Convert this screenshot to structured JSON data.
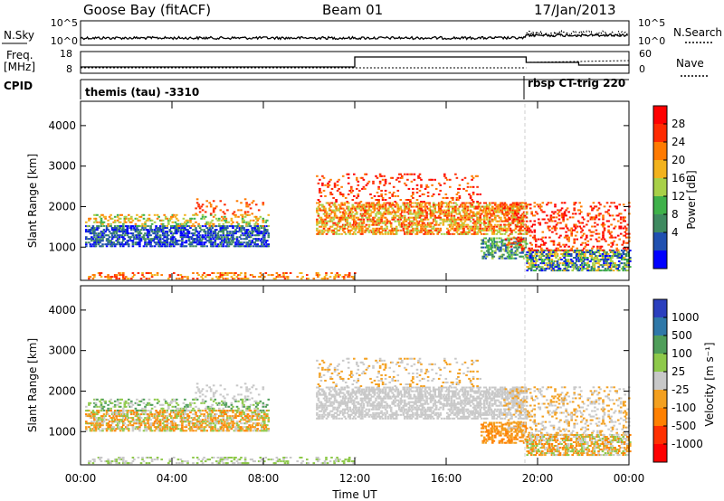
{
  "header": {
    "station": "Goose Bay (fitACF)",
    "beam": "Beam 01",
    "date": "17/Jan/2013"
  },
  "top_panels": {
    "nsky_label": "N.Sky",
    "nsky_ticks": [
      "10^5",
      "10^0"
    ],
    "nsearch_label": "N.Search",
    "nsearch_ticks": [
      "10^5",
      "10^0"
    ],
    "freq_label_1": "Freq.",
    "freq_label_2": "[MHz]",
    "freq_ticks": [
      "18",
      "8"
    ],
    "nave_label": "Nave",
    "nave_ticks": [
      "60",
      "0"
    ],
    "cpid_label": "CPID",
    "cpid_1": "themis (tau) -3310",
    "cpid_2": "rbsp CT-trig 220"
  },
  "chart_data": [
    {
      "type": "heatmap",
      "name": "power",
      "ylabel": "Slant Range [km]",
      "xlabel": "",
      "x_ticks": [
        "00:00",
        "04:00",
        "08:00",
        "12:00",
        "16:00",
        "20:00",
        "00:00"
      ],
      "x_range_hours": [
        0,
        24
      ],
      "y_ticks": [
        "1000",
        "2000",
        "3000",
        "4000"
      ],
      "y_range_km": [
        180,
        4600
      ],
      "colorbar_label": "Power [dB]",
      "colorbar_ticks": [
        "4",
        "8",
        "12",
        "16",
        "20",
        "24",
        "28"
      ],
      "colorbar_colors": [
        "#0000ff",
        "#2050b0",
        "#3f8a60",
        "#3fb14a",
        "#a8d048",
        "#f2b21d",
        "#ff7a00",
        "#ff2a00",
        "#ff0000"
      ]
    },
    {
      "type": "heatmap",
      "name": "velocity",
      "ylabel": "Slant Range [km]",
      "xlabel": "Time UT",
      "x_ticks": [
        "00:00",
        "04:00",
        "08:00",
        "12:00",
        "16:00",
        "20:00",
        "00:00"
      ],
      "x_range_hours": [
        0,
        24
      ],
      "y_ticks": [
        "1000",
        "2000",
        "3000",
        "4000"
      ],
      "y_range_km": [
        180,
        4600
      ],
      "colorbar_label": "Velocity [m s⁻¹]",
      "colorbar_ticks": [
        "1000",
        "500",
        "100",
        "25",
        "-25",
        "-100",
        "-500",
        "-1000"
      ],
      "colorbar_colors": [
        "#2b3fbe",
        "#2f78a8",
        "#4f9e5a",
        "#8ec94a",
        "#c8c8c8",
        "#f3a020",
        "#ff8000",
        "#ff3000",
        "#ff0000"
      ]
    }
  ]
}
